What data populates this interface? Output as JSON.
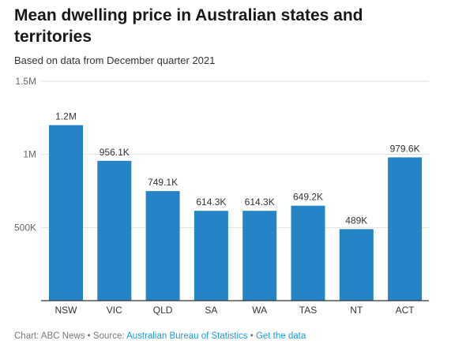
{
  "title": "Mean dwelling price in Australian states and territories",
  "subtitle": "Based on data from December quarter 2021",
  "footer": {
    "chart_credit": "Chart: ABC News",
    "separator": " • ",
    "source_prefix": "Source: ",
    "source_link": "Australian Bureau of Statistics",
    "get_data": "Get the data"
  },
  "colors": {
    "bar": "#2484c6",
    "grid": "#e2e2e2",
    "axis": "#333333",
    "tick_text": "#666666",
    "label_text": "#333333",
    "link": "#1a9bd7"
  },
  "chart_data": {
    "type": "bar",
    "categories": [
      "NSW",
      "VIC",
      "QLD",
      "SA",
      "WA",
      "TAS",
      "NT",
      "ACT"
    ],
    "values": [
      1200000,
      956100,
      749100,
      614300,
      614300,
      649200,
      489000,
      979600
    ],
    "value_labels": [
      "1.2M",
      "956.1K",
      "749.1K",
      "614.3K",
      "614.3K",
      "649.2K",
      "489K",
      "979.6K"
    ],
    "yticks": [
      0,
      500000,
      1000000,
      1500000
    ],
    "ytick_labels": [
      "",
      "500K",
      "1M",
      "1.5M"
    ],
    "ylim": [
      0,
      1500000
    ],
    "grid": true,
    "legend": "none"
  }
}
